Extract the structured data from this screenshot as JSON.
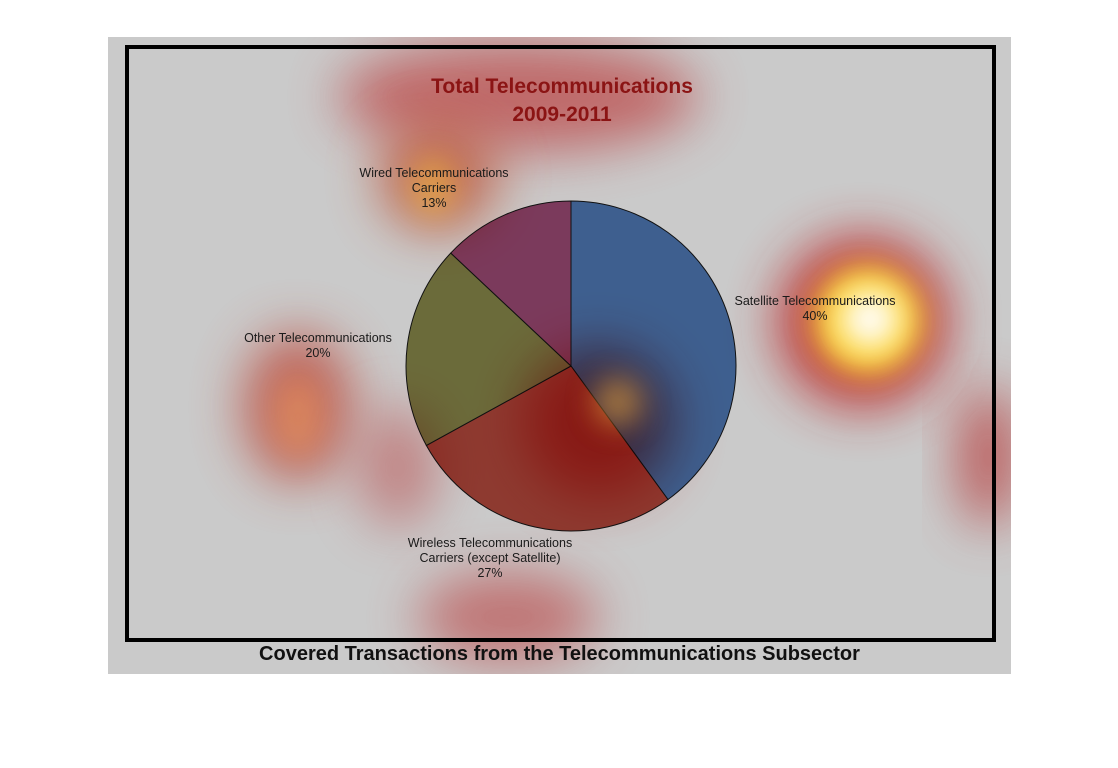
{
  "chart_data": {
    "type": "pie",
    "title": "Total Telecommunications",
    "subtitle": "2009-2011",
    "slices": [
      {
        "label": [
          "Satellite Telecommunications"
        ],
        "pct_label": "40%",
        "value": 40,
        "color": "#3e5f8f"
      },
      {
        "label": [
          "Wireless Telecommunications",
          "Carriers (except Satellite)"
        ],
        "pct_label": "27%",
        "value": 27,
        "color": "#8e3a30"
      },
      {
        "label": [
          "Other Telecommunications"
        ],
        "pct_label": "20%",
        "value": 20,
        "color": "#6b6b3a"
      },
      {
        "label": [
          "Wired Telecommunications",
          "Carriers"
        ],
        "pct_label": "13%",
        "value": 13,
        "color": "#7b3a5c"
      }
    ]
  },
  "caption": "Covered Transactions from the Telecommunications Subsector"
}
